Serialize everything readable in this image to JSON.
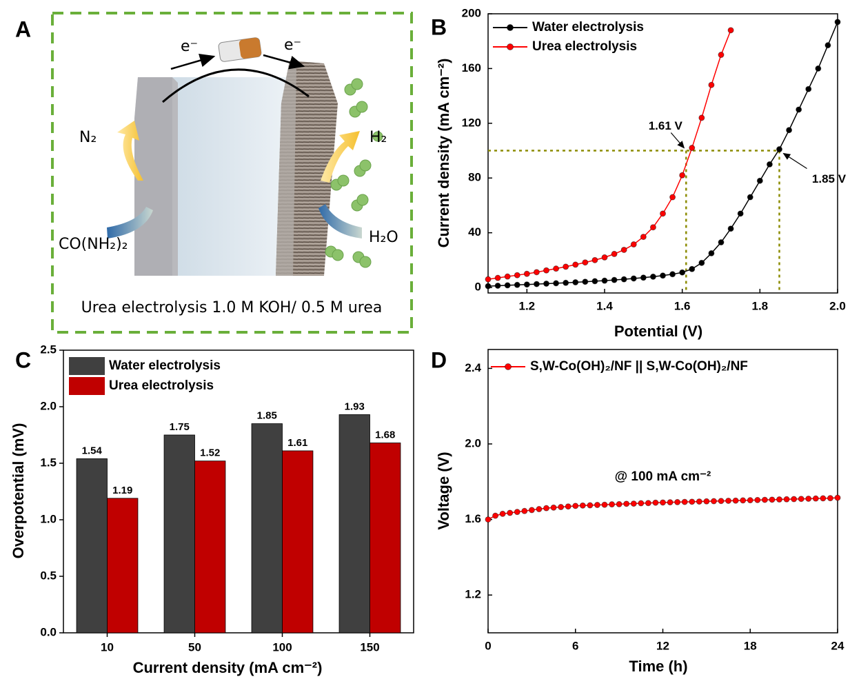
{
  "panel_labels": [
    "A",
    "B",
    "C",
    "D"
  ],
  "diagram": {
    "electron_labels": [
      "e⁻",
      "e⁻"
    ],
    "left_gas": "N₂",
    "right_gas": "H₂",
    "left_reactant": "CO(NH₂)₂",
    "right_reactant": "H₂O",
    "caption": "Urea electrolysis 1.0 M KOH/ 0.5 M urea"
  },
  "chart_data": [
    {
      "type": "line",
      "xlabel": "Potential (V)",
      "ylabel": "Current density (mA cm⁻²)",
      "xlim": [
        1.1,
        2.0
      ],
      "xticks": [
        1.2,
        1.4,
        1.6,
        1.8,
        {
          "value": 2,
          "label": "2.0"
        }
      ],
      "ylim": [
        -4,
        200
      ],
      "yticks": [
        0,
        40,
        80,
        120,
        160,
        200
      ],
      "legend": "upper left",
      "series": [
        {
          "name": "Water electrolysis",
          "color": "#000000",
          "x": [
            1.1,
            1.125,
            1.15,
            1.175,
            1.2,
            1.225,
            1.25,
            1.275,
            1.3,
            1.325,
            1.35,
            1.375,
            1.4,
            1.425,
            1.45,
            1.475,
            1.5,
            1.525,
            1.55,
            1.575,
            1.6,
            1.625,
            1.65,
            1.675,
            1.7,
            1.725,
            1.75,
            1.775,
            1.8,
            1.825,
            1.85,
            1.875,
            1.9,
            1.925,
            1.95,
            1.975,
            2.0
          ],
          "values": [
            1.0,
            1.3,
            1.6,
            1.9,
            2.2,
            2.5,
            2.8,
            3.1,
            3.4,
            3.8,
            4.2,
            4.6,
            5.0,
            5.5,
            6.0,
            6.6,
            7.2,
            7.9,
            8.7,
            9.7,
            11.0,
            13.5,
            18,
            25,
            33,
            43,
            54,
            66,
            78,
            90,
            101,
            115,
            130,
            145,
            160,
            177,
            194
          ]
        },
        {
          "name": "Urea electrolysis",
          "color": "#ff0000",
          "x": [
            1.1,
            1.125,
            1.15,
            1.175,
            1.2,
            1.225,
            1.25,
            1.275,
            1.3,
            1.325,
            1.35,
            1.375,
            1.4,
            1.425,
            1.45,
            1.475,
            1.5,
            1.525,
            1.55,
            1.575,
            1.6,
            1.625,
            1.65,
            1.675,
            1.7,
            1.725
          ],
          "values": [
            6,
            7,
            8,
            9,
            10,
            11.2,
            12.5,
            13.8,
            15.2,
            16.7,
            18.3,
            20,
            22,
            24.5,
            27.5,
            31.5,
            37,
            44,
            54,
            66,
            82,
            102,
            124,
            148,
            170,
            188
          ]
        }
      ],
      "reference_lines": {
        "y": 100,
        "x": [
          1.61,
          1.85
        ],
        "color": "#8b8b00"
      },
      "annotations": [
        "1.61 V",
        "1.85 V"
      ]
    },
    {
      "type": "bar",
      "xlabel": "Current density  (mA cm⁻²)",
      "ylabel": "Overpotential (mV)",
      "categories": [
        "10",
        "50",
        "100",
        "150"
      ],
      "ylim": [
        0,
        2.5
      ],
      "yticks": [
        {
          "value": 0,
          "label": "0.0"
        },
        0.5,
        {
          "value": 1,
          "label": "1.0"
        },
        1.5,
        {
          "value": 2,
          "label": "2.0"
        },
        2.5
      ],
      "legend": "upper left",
      "series": [
        {
          "name": "Water electrolysis",
          "color": "#404040",
          "values": [
            1.54,
            1.75,
            1.85,
            1.93
          ]
        },
        {
          "name": "Urea electrolysis",
          "color": "#c00000",
          "values": [
            1.19,
            1.52,
            1.61,
            1.68
          ]
        }
      ]
    },
    {
      "type": "line",
      "xlabel": "Time (h)",
      "ylabel": "Voltage (V)",
      "xlim": [
        0,
        24
      ],
      "xticks": [
        0,
        6,
        12,
        18,
        24
      ],
      "ylim": [
        1.0,
        2.5
      ],
      "yticks": [
        1.2,
        1.6,
        {
          "value": 2,
          "label": "2.0"
        },
        2.4
      ],
      "legend": "upper left",
      "series": [
        {
          "name": "S,W-Co(OH)₂/NF || S,W-Co(OH)₂/NF",
          "color": "#ff0000",
          "x": [
            0,
            0.5,
            1,
            1.5,
            2,
            2.5,
            3,
            3.5,
            4,
            4.5,
            5,
            5.5,
            6,
            6.5,
            7,
            7.5,
            8,
            8.5,
            9,
            9.5,
            10,
            10.5,
            11,
            11.5,
            12,
            12.5,
            13,
            13.5,
            14,
            14.5,
            15,
            15.5,
            16,
            16.5,
            17,
            17.5,
            18,
            18.5,
            19,
            19.5,
            20,
            20.5,
            21,
            21.5,
            22,
            22.5,
            23,
            23.5,
            24
          ],
          "values": [
            1.6,
            1.62,
            1.63,
            1.635,
            1.64,
            1.645,
            1.65,
            1.655,
            1.66,
            1.663,
            1.666,
            1.669,
            1.672,
            1.674,
            1.675,
            1.677,
            1.678,
            1.68,
            1.681,
            1.683,
            1.684,
            1.686,
            1.687,
            1.689,
            1.69,
            1.691,
            1.692,
            1.693,
            1.694,
            1.695,
            1.696,
            1.697,
            1.698,
            1.699,
            1.7,
            1.701,
            1.702,
            1.703,
            1.704,
            1.705,
            1.706,
            1.707,
            1.708,
            1.709,
            1.71,
            1.711,
            1.712,
            1.713,
            1.715
          ]
        }
      ],
      "annotations": [
        "@ 100 mA cm⁻²"
      ]
    }
  ]
}
